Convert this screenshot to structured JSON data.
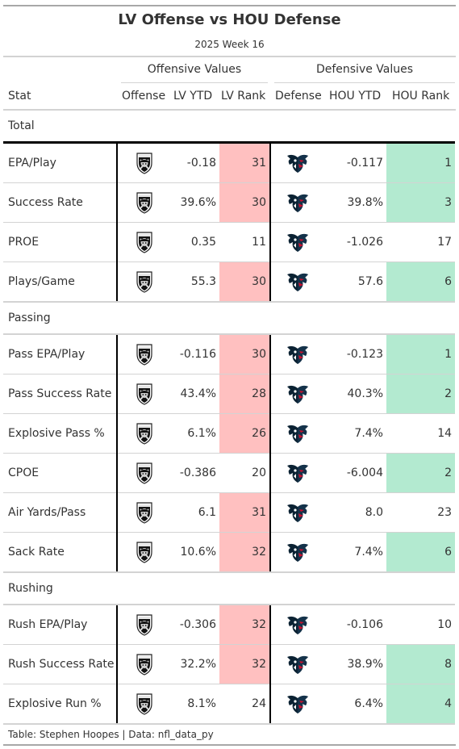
{
  "title": "LV Offense vs HOU Defense",
  "subtitle": "2025 Week 16",
  "spanners": {
    "offense": "Offensive Values",
    "defense": "Defensive Values"
  },
  "columns": {
    "stat": "Stat",
    "offense": "Offense",
    "off_ytd": "LV YTD",
    "off_rank": "LV Rank",
    "defense": "Defense",
    "def_ytd": "HOU YTD",
    "def_rank": "HOU Rank"
  },
  "colors": {
    "bad_rank": "#ffc0c0",
    "good_rank": "#b3ead0",
    "raiders": "#000000",
    "texans_navy": "#03202f",
    "texans_red": "#a71930"
  },
  "icons": {
    "offense": "raiders-logo-icon",
    "defense": "texans-logo-icon"
  },
  "groups": [
    {
      "name": "Total",
      "rows": [
        {
          "stat": "EPA/Play",
          "off_ytd": "-0.18",
          "off_rank": "31",
          "off_tier": "bad",
          "def_ytd": "-0.117",
          "def_rank": "1",
          "def_tier": "good"
        },
        {
          "stat": "Success Rate",
          "off_ytd": "39.6%",
          "off_rank": "30",
          "off_tier": "bad",
          "def_ytd": "39.8%",
          "def_rank": "3",
          "def_tier": "good"
        },
        {
          "stat": "PROE",
          "off_ytd": "0.35",
          "off_rank": "11",
          "off_tier": "none",
          "def_ytd": "-1.026",
          "def_rank": "17",
          "def_tier": "none"
        },
        {
          "stat": "Plays/Game",
          "off_ytd": "55.3",
          "off_rank": "30",
          "off_tier": "bad",
          "def_ytd": "57.6",
          "def_rank": "6",
          "def_tier": "good"
        }
      ]
    },
    {
      "name": "Passing",
      "rows": [
        {
          "stat": "Pass EPA/Play",
          "off_ytd": "-0.116",
          "off_rank": "30",
          "off_tier": "bad",
          "def_ytd": "-0.123",
          "def_rank": "1",
          "def_tier": "good"
        },
        {
          "stat": "Pass Success Rate",
          "off_ytd": "43.4%",
          "off_rank": "28",
          "off_tier": "bad",
          "def_ytd": "40.3%",
          "def_rank": "2",
          "def_tier": "good"
        },
        {
          "stat": "Explosive Pass %",
          "off_ytd": "6.1%",
          "off_rank": "26",
          "off_tier": "bad",
          "def_ytd": "7.4%",
          "def_rank": "14",
          "def_tier": "none"
        },
        {
          "stat": "CPOE",
          "off_ytd": "-0.386",
          "off_rank": "20",
          "off_tier": "none",
          "def_ytd": "-6.004",
          "def_rank": "2",
          "def_tier": "good"
        },
        {
          "stat": "Air Yards/Pass",
          "off_ytd": "6.1",
          "off_rank": "31",
          "off_tier": "bad",
          "def_ytd": "8.0",
          "def_rank": "23",
          "def_tier": "none"
        },
        {
          "stat": "Sack Rate",
          "off_ytd": "10.6%",
          "off_rank": "32",
          "off_tier": "bad",
          "def_ytd": "7.4%",
          "def_rank": "6",
          "def_tier": "good"
        }
      ]
    },
    {
      "name": "Rushing",
      "rows": [
        {
          "stat": "Rush EPA/Play",
          "off_ytd": "-0.306",
          "off_rank": "32",
          "off_tier": "bad",
          "def_ytd": "-0.106",
          "def_rank": "10",
          "def_tier": "none"
        },
        {
          "stat": "Rush Success Rate",
          "off_ytd": "32.2%",
          "off_rank": "32",
          "off_tier": "bad",
          "def_ytd": "38.9%",
          "def_rank": "8",
          "def_tier": "good"
        },
        {
          "stat": "Explosive Run %",
          "off_ytd": "8.1%",
          "off_rank": "24",
          "off_tier": "none",
          "def_ytd": "6.4%",
          "def_rank": "4",
          "def_tier": "good"
        }
      ]
    }
  ],
  "footer": "Table: Stephen Hoopes | Data: nfl_data_py"
}
